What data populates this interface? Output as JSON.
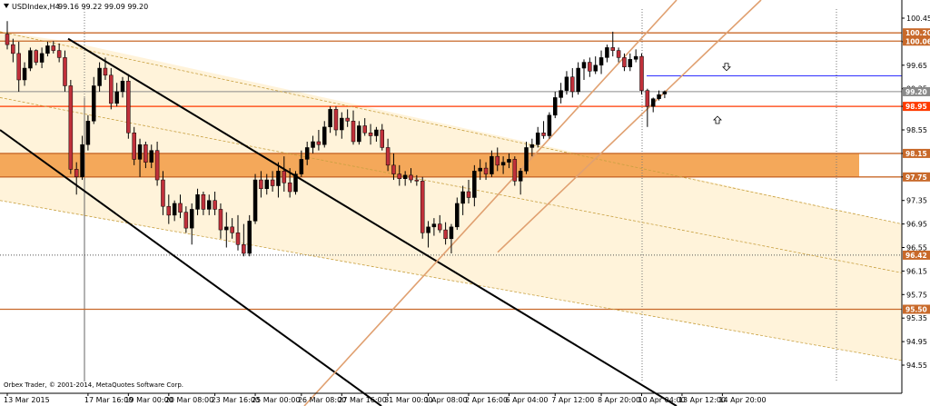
{
  "header": {
    "symbol": "USDIndex,H4",
    "ohlc": "99.16 99.22 99.09 99.20"
  },
  "copyright": "Orbex Trader, © 2001-2014, MetaQuotes Software Corp.",
  "chart_data": {
    "type": "candlestick",
    "symbol": "USDIndex",
    "timeframe": "H4",
    "ylim": [
      94.35,
      100.55
    ],
    "y_ticks": [
      94.55,
      94.95,
      95.35,
      95.75,
      96.15,
      96.55,
      96.95,
      97.35,
      97.75,
      98.15,
      98.55,
      98.95,
      99.25,
      99.65,
      100.05,
      100.45
    ],
    "x_tick_labels": [
      "13 Mar 2015",
      "17 Mar 16:00",
      "19 Mar 00:00",
      "20 Mar 08:00",
      "23 Mar 16:00",
      "25 Mar 00:00",
      "26 Mar 08:00",
      "27 Mar 16:00",
      "31 Mar 00:00",
      "1 Apr 08:00",
      "2 Apr 16:00",
      "6 Apr 04:00",
      "7 Apr 12:00",
      "8 Apr 20:00",
      "10 Apr 04:00",
      "13 Apr 12:00",
      "14 Apr 20:00"
    ],
    "current_price": 99.2,
    "price_levels": [
      {
        "value": 100.2,
        "label": "100.20",
        "color": "#c8692a"
      },
      {
        "value": 100.06,
        "label": "100.06",
        "color": "#c8692a"
      },
      {
        "value": 98.95,
        "label": "98.95",
        "color": "#ff3a00"
      },
      {
        "value": 98.15,
        "label": "98.15",
        "color": "#c8692a"
      },
      {
        "value": 97.75,
        "label": "97.75",
        "color": "#c8692a"
      },
      {
        "value": 96.42,
        "label": "96.42",
        "color": "#c8692a"
      },
      {
        "value": 95.5,
        "label": "95.50",
        "color": "#c8692a"
      }
    ],
    "support_zone": {
      "from": 97.75,
      "to": 98.15,
      "color": "#f4a85a"
    },
    "target_line": {
      "value": 99.47,
      "color": "#3030ff"
    },
    "up_color": "#000000",
    "down_color": "#c0303a",
    "candles": [
      [
        100.18,
        100.4,
        99.92,
        100.0
      ],
      [
        100.0,
        100.1,
        99.7,
        99.85
      ],
      [
        99.85,
        100.05,
        99.2,
        99.4
      ],
      [
        99.4,
        99.7,
        99.3,
        99.6
      ],
      [
        99.6,
        99.95,
        99.55,
        99.9
      ],
      [
        99.9,
        99.92,
        99.65,
        99.7
      ],
      [
        99.7,
        99.95,
        99.6,
        99.85
      ],
      [
        99.85,
        100.05,
        99.8,
        99.98
      ],
      [
        99.98,
        100.06,
        99.85,
        99.9
      ],
      [
        99.9,
        100.02,
        99.7,
        99.78
      ],
      [
        99.78,
        99.9,
        99.2,
        99.3
      ],
      [
        99.3,
        99.4,
        97.8,
        97.88
      ],
      [
        97.88,
        98.0,
        97.45,
        97.75
      ],
      [
        97.75,
        98.45,
        97.7,
        98.3
      ],
      [
        98.3,
        98.8,
        98.2,
        98.7
      ],
      [
        98.7,
        99.45,
        98.65,
        99.3
      ],
      [
        99.3,
        99.7,
        99.2,
        99.6
      ],
      [
        99.6,
        99.78,
        99.4,
        99.48
      ],
      [
        99.48,
        99.6,
        98.9,
        99.0
      ],
      [
        99.0,
        99.35,
        98.95,
        99.2
      ],
      [
        99.2,
        99.45,
        99.1,
        99.38
      ],
      [
        99.38,
        99.5,
        98.4,
        98.5
      ],
      [
        98.5,
        98.6,
        97.95,
        98.05
      ],
      [
        98.05,
        98.4,
        97.75,
        98.3
      ],
      [
        98.3,
        98.35,
        97.9,
        98.0
      ],
      [
        98.0,
        98.3,
        97.9,
        98.2
      ],
      [
        98.2,
        98.35,
        97.6,
        97.7
      ],
      [
        97.7,
        97.85,
        97.1,
        97.25
      ],
      [
        97.25,
        97.45,
        96.95,
        97.1
      ],
      [
        97.1,
        97.35,
        97.0,
        97.3
      ],
      [
        97.3,
        97.45,
        97.05,
        97.15
      ],
      [
        97.15,
        97.25,
        96.8,
        96.88
      ],
      [
        96.88,
        97.3,
        96.6,
        97.2
      ],
      [
        97.2,
        97.55,
        97.1,
        97.45
      ],
      [
        97.45,
        97.5,
        97.1,
        97.2
      ],
      [
        97.2,
        97.45,
        97.1,
        97.35
      ],
      [
        97.35,
        97.5,
        97.1,
        97.2
      ],
      [
        97.2,
        97.3,
        96.7,
        96.85
      ],
      [
        96.85,
        97.15,
        96.55,
        96.9
      ],
      [
        96.9,
        97.05,
        96.7,
        96.8
      ],
      [
        96.8,
        97.1,
        96.5,
        96.6
      ],
      [
        96.6,
        96.95,
        96.4,
        96.45
      ],
      [
        96.45,
        97.1,
        96.4,
        97.0
      ],
      [
        97.0,
        97.8,
        96.95,
        97.7
      ],
      [
        97.7,
        97.85,
        97.4,
        97.55
      ],
      [
        97.55,
        97.8,
        97.45,
        97.7
      ],
      [
        97.7,
        97.85,
        97.5,
        97.6
      ],
      [
        97.6,
        98.0,
        97.4,
        97.85
      ],
      [
        97.85,
        98.1,
        97.5,
        97.65
      ],
      [
        97.65,
        97.9,
        97.4,
        97.5
      ],
      [
        97.5,
        97.85,
        97.45,
        97.8
      ],
      [
        97.8,
        98.2,
        97.75,
        98.05
      ],
      [
        98.05,
        98.35,
        97.95,
        98.25
      ],
      [
        98.25,
        98.45,
        98.15,
        98.35
      ],
      [
        98.35,
        98.55,
        98.2,
        98.3
      ],
      [
        98.3,
        98.7,
        98.25,
        98.6
      ],
      [
        98.6,
        98.95,
        98.5,
        98.9
      ],
      [
        98.9,
        98.95,
        98.45,
        98.55
      ],
      [
        98.55,
        98.85,
        98.4,
        98.75
      ],
      [
        98.75,
        98.9,
        98.6,
        98.7
      ],
      [
        98.7,
        98.88,
        98.3,
        98.35
      ],
      [
        98.35,
        98.7,
        98.3,
        98.62
      ],
      [
        98.62,
        98.75,
        98.45,
        98.5
      ],
      [
        98.5,
        98.65,
        98.3,
        98.45
      ],
      [
        98.45,
        98.6,
        98.35,
        98.55
      ],
      [
        98.55,
        98.65,
        98.2,
        98.25
      ],
      [
        98.25,
        98.4,
        97.85,
        97.95
      ],
      [
        97.95,
        98.15,
        97.7,
        97.8
      ],
      [
        97.8,
        97.95,
        97.6,
        97.72
      ],
      [
        97.72,
        97.85,
        97.6,
        97.78
      ],
      [
        97.78,
        97.9,
        97.65,
        97.7
      ],
      [
        97.7,
        97.78,
        97.6,
        97.68
      ],
      [
        97.68,
        97.75,
        96.7,
        96.8
      ],
      [
        96.8,
        97.0,
        96.55,
        96.9
      ],
      [
        96.9,
        97.05,
        96.75,
        96.95
      ],
      [
        96.95,
        97.1,
        96.8,
        96.85
      ],
      [
        96.85,
        96.98,
        96.6,
        96.7
      ],
      [
        96.7,
        96.95,
        96.45,
        96.9
      ],
      [
        96.9,
        97.4,
        96.85,
        97.3
      ],
      [
        97.3,
        97.6,
        97.1,
        97.5
      ],
      [
        97.5,
        97.7,
        97.3,
        97.4
      ],
      [
        97.4,
        97.95,
        97.25,
        97.85
      ],
      [
        97.85,
        98.05,
        97.7,
        97.9
      ],
      [
        97.9,
        98.0,
        97.7,
        97.8
      ],
      [
        97.8,
        98.2,
        97.75,
        98.1
      ],
      [
        98.1,
        98.25,
        97.85,
        97.95
      ],
      [
        97.95,
        98.1,
        97.8,
        98.0
      ],
      [
        98.0,
        98.15,
        97.9,
        98.05
      ],
      [
        98.05,
        98.1,
        97.6,
        97.68
      ],
      [
        97.68,
        97.9,
        97.45,
        97.85
      ],
      [
        97.85,
        98.35,
        97.8,
        98.25
      ],
      [
        98.25,
        98.4,
        98.1,
        98.3
      ],
      [
        98.3,
        98.6,
        98.25,
        98.5
      ],
      [
        98.5,
        98.7,
        98.4,
        98.45
      ],
      [
        98.45,
        98.85,
        98.4,
        98.8
      ],
      [
        98.8,
        99.2,
        98.75,
        99.1
      ],
      [
        99.1,
        99.35,
        99.0,
        99.22
      ],
      [
        99.22,
        99.55,
        99.15,
        99.45
      ],
      [
        99.45,
        99.6,
        99.1,
        99.2
      ],
      [
        99.2,
        99.7,
        99.15,
        99.6
      ],
      [
        99.6,
        99.75,
        99.4,
        99.7
      ],
      [
        99.7,
        99.78,
        99.45,
        99.55
      ],
      [
        99.55,
        99.8,
        99.5,
        99.65
      ],
      [
        99.65,
        99.9,
        99.5,
        99.78
      ],
      [
        99.78,
        100.0,
        99.7,
        99.95
      ],
      [
        99.95,
        100.22,
        99.8,
        99.9
      ],
      [
        99.9,
        99.95,
        99.7,
        99.78
      ],
      [
        99.78,
        99.85,
        99.55,
        99.62
      ],
      [
        99.62,
        99.85,
        99.55,
        99.75
      ],
      [
        99.75,
        99.92,
        99.7,
        99.8
      ],
      [
        99.8,
        99.85,
        99.15,
        99.22
      ],
      [
        99.22,
        99.25,
        98.6,
        98.95
      ],
      [
        98.95,
        99.1,
        98.85,
        99.08
      ],
      [
        99.08,
        99.22,
        99.05,
        99.15
      ],
      [
        99.16,
        99.22,
        99.09,
        99.2
      ]
    ],
    "x_label_candle_index": [
      0,
      14,
      21,
      28,
      36,
      43,
      51,
      58,
      66,
      73,
      80,
      87,
      95,
      103,
      110,
      117,
      124
    ],
    "annotations": [
      {
        "type": "down-arrow",
        "price": 99.62
      },
      {
        "type": "up-arrow",
        "price": 98.72
      }
    ]
  }
}
